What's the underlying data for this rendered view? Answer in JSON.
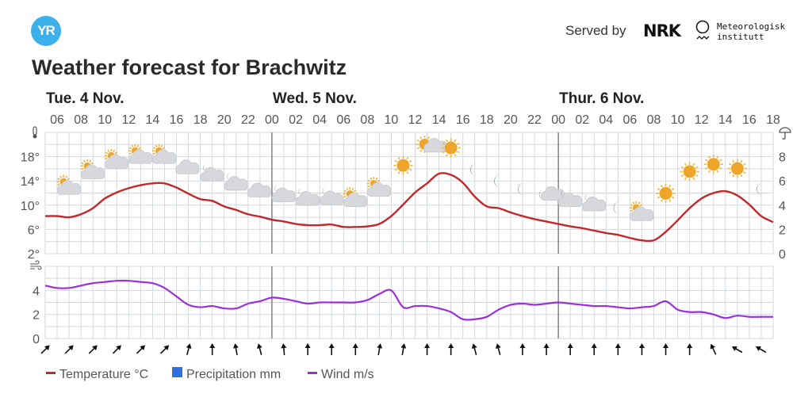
{
  "header": {
    "logo_text": "YR",
    "served_by": "Served by",
    "nrk": "NRK",
    "met_line1": "Meteorologisk",
    "met_line2": "institutt"
  },
  "chart_data": {
    "type": "line",
    "title": "Weather forecast for Brachwitz",
    "days": [
      {
        "label": "Tue. 4 Nov.",
        "start_hour_index": 0
      },
      {
        "label": "Wed. 5 Nov.",
        "start_hour_index": 19
      },
      {
        "label": "Thur. 6 Nov.",
        "start_hour_index": 43
      }
    ],
    "hour_ticks": [
      "06",
      "08",
      "10",
      "12",
      "14",
      "16",
      "18",
      "20",
      "22",
      "00",
      "02",
      "04",
      "06",
      "08",
      "10",
      "12",
      "14",
      "16",
      "18",
      "20",
      "22",
      "00",
      "02",
      "04",
      "06",
      "08",
      "10",
      "12",
      "14",
      "16",
      "18"
    ],
    "x_range_hours": [
      "Tue 05:00",
      "Thu 18:00"
    ],
    "temperature_axis": {
      "ticks": [
        "2°",
        "6°",
        "10°",
        "14°",
        "18°"
      ],
      "range": [
        2,
        22
      ]
    },
    "precipitation_axis": {
      "ticks": [
        "0",
        "2",
        "4",
        "6",
        "8"
      ],
      "range": [
        0,
        10
      ]
    },
    "wind_axis": {
      "ticks": [
        "0",
        "2",
        "4"
      ],
      "range": [
        0,
        6
      ]
    },
    "series": [
      {
        "name": "Temperature °C",
        "color": "#c0282b",
        "values": [
          8.2,
          8.2,
          8.0,
          8.5,
          9.5,
          11.1,
          12.1,
          12.8,
          13.3,
          13.6,
          13.6,
          12.9,
          11.9,
          11.0,
          10.7,
          9.8,
          9.2,
          8.5,
          8.1,
          7.6,
          7.3,
          6.9,
          6.7,
          6.7,
          6.8,
          6.4,
          6.4,
          6.5,
          6.9,
          8.2,
          10.1,
          12.1,
          13.6,
          15.2,
          15.0,
          13.7,
          11.4,
          9.8,
          9.5,
          8.8,
          8.2,
          7.7,
          7.3,
          6.9,
          6.5,
          6.2,
          5.8,
          5.4,
          5.1,
          4.6,
          4.2,
          4.2,
          5.6,
          7.5,
          9.5,
          11.1,
          12.0,
          12.3,
          11.6,
          10.1,
          8.2,
          7.2
        ]
      },
      {
        "name": "Precipitation mm",
        "color": "#2f6fde",
        "values": []
      },
      {
        "name": "Wind m/s",
        "color": "#9b30d9",
        "values": [
          4.4,
          4.2,
          4.2,
          4.4,
          4.6,
          4.7,
          4.8,
          4.8,
          4.7,
          4.6,
          4.2,
          3.5,
          2.8,
          2.6,
          2.7,
          2.5,
          2.5,
          2.9,
          3.1,
          3.4,
          3.3,
          3.1,
          2.9,
          3.0,
          3.0,
          3.0,
          3.0,
          3.2,
          3.7,
          4.0,
          2.6,
          2.7,
          2.7,
          2.5,
          2.2,
          1.6,
          1.6,
          1.8,
          2.4,
          2.8,
          2.9,
          2.8,
          2.9,
          3.0,
          2.9,
          2.8,
          2.7,
          2.7,
          2.6,
          2.5,
          2.6,
          2.7,
          3.1,
          2.4,
          2.2,
          2.2,
          2.0,
          1.7,
          1.9,
          1.8,
          1.8,
          1.8
        ]
      }
    ],
    "weather_symbols": [
      "partly-cloudy-day",
      "partly-cloudy-day",
      "partly-cloudy-day",
      "partly-cloudy-day",
      "partly-cloudy-day",
      "cloudy",
      "partly-cloudy-night",
      "partly-cloudy-night",
      "cloudy",
      "partly-cloudy-night",
      "partly-cloudy-night",
      "partly-cloudy-night",
      "partly-cloudy-day",
      "partly-cloudy-day",
      "clear-day",
      "fair-day",
      "clear-day",
      "clear-night",
      "clear-night",
      "clear-night",
      "fair-night",
      "partly-cloudy-night",
      "partly-cloudy-night",
      "clear-night",
      "partly-cloudy-day",
      "clear-day",
      "clear-day",
      "clear-day",
      "clear-day",
      "clear-night"
    ],
    "wind_direction_arrows_deg": [
      45,
      45,
      45,
      45,
      45,
      45,
      15,
      0,
      -10,
      -15,
      -5,
      0,
      0,
      0,
      10,
      10,
      0,
      0,
      -15,
      -15,
      0,
      0,
      0,
      0,
      0,
      0,
      0,
      0,
      -25,
      -60,
      -60
    ],
    "legend": [
      "Temperature °C",
      "Precipitation mm",
      "Wind m/s"
    ],
    "legend_position": "bottom-left"
  }
}
